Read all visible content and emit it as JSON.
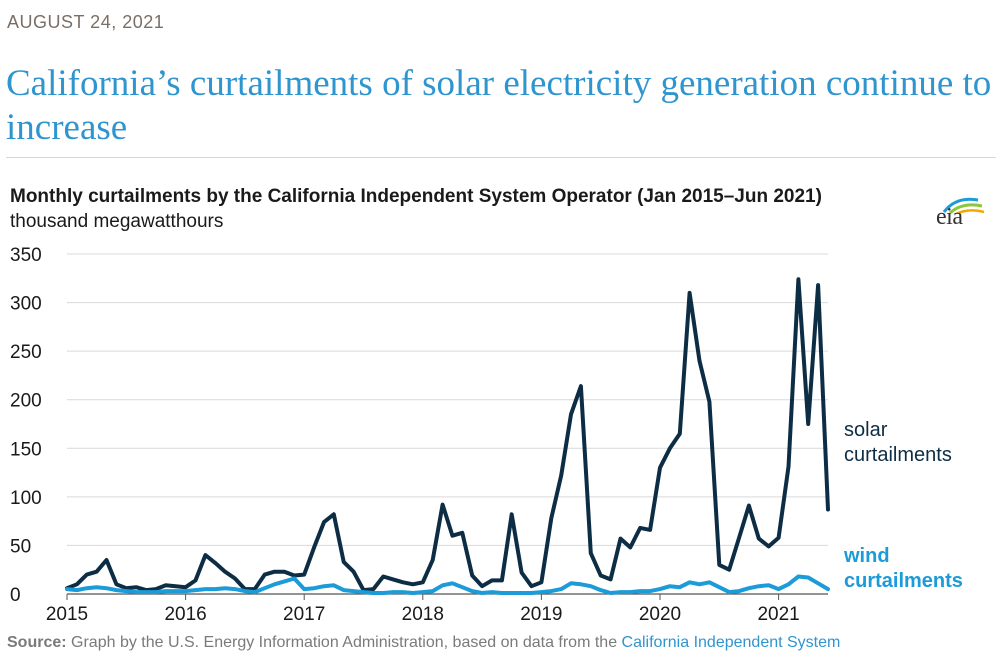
{
  "date": "AUGUST 24, 2021",
  "headline": "California’s curtailments of solar electricity generation continue to increase",
  "logo_text": "eia",
  "source": {
    "label": "Source:",
    "text": " Graph by the U.S. Energy Information Administration, based on data from the ",
    "link": "California Independent System"
  },
  "colors": {
    "solar": "#0d2d45",
    "wind": "#1b9bd7",
    "headline": "#2f95cf"
  },
  "chart_data": {
    "type": "line",
    "title": "Monthly curtailments by the California Independent System Operator (Jan 2015–Jun 2021)",
    "ylabel": "thousand megawatthours",
    "xlabel": "",
    "ylim": [
      0,
      350
    ],
    "yticks": [
      "0",
      "50",
      "100",
      "150",
      "200",
      "250",
      "300",
      "350"
    ],
    "xticks": [
      "2015",
      "2016",
      "2017",
      "2018",
      "2019",
      "2020",
      "2021"
    ],
    "x_range": [
      "2015-01",
      "2021-06"
    ],
    "grid": "horizontal",
    "legend": "direct labels at right end of lines",
    "series": [
      {
        "name": "solar curtailments",
        "label_lines": [
          "solar",
          "curtailments"
        ],
        "values": [
          6,
          10,
          20,
          23,
          35,
          10,
          6,
          7,
          4,
          5,
          9,
          8,
          7,
          14,
          40,
          32,
          23,
          16,
          5,
          5,
          20,
          23,
          23,
          19,
          20,
          48,
          74,
          82,
          33,
          23,
          4,
          5,
          18,
          15,
          12,
          10,
          12,
          35,
          92,
          60,
          63,
          19,
          8,
          14,
          14,
          82,
          22,
          8,
          12,
          78,
          122,
          185,
          214,
          42,
          19,
          15,
          57,
          48,
          68,
          66,
          130,
          150,
          165,
          310,
          240,
          198,
          30,
          25,
          58,
          91,
          57,
          49,
          58,
          131,
          324,
          175,
          318,
          87
        ]
      },
      {
        "name": "wind curtailments",
        "label_lines": [
          "wind",
          "curtailments"
        ],
        "values": [
          5,
          4,
          6,
          7,
          6,
          4,
          3,
          2,
          2,
          2,
          3,
          3,
          3,
          4,
          5,
          5,
          6,
          5,
          3,
          2,
          6,
          10,
          13,
          16,
          5,
          6,
          8,
          9,
          4,
          3,
          2,
          1,
          1,
          2,
          2,
          1,
          2,
          3,
          9,
          11,
          7,
          3,
          1,
          2,
          1,
          1,
          1,
          1,
          2,
          3,
          5,
          11,
          10,
          8,
          4,
          1,
          2,
          2,
          3,
          3,
          5,
          8,
          7,
          12,
          10,
          12,
          7,
          2,
          3,
          6,
          8,
          9,
          5,
          10,
          18,
          17,
          11,
          5
        ]
      }
    ]
  }
}
